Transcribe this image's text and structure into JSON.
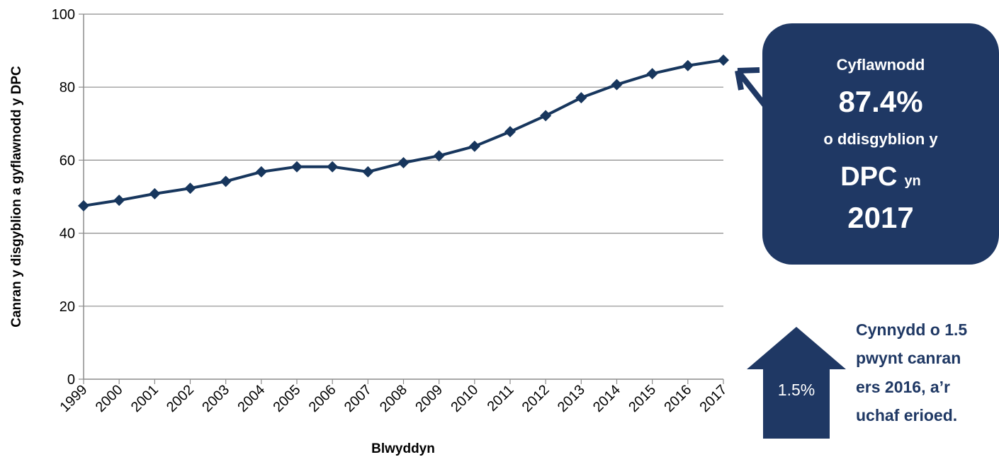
{
  "chart_data": {
    "type": "line",
    "x": [
      "1999",
      "2000",
      "2001",
      "2002",
      "2003",
      "2004",
      "2005",
      "2006",
      "2007",
      "2008",
      "2009",
      "2010",
      "2011",
      "2012",
      "2013",
      "2014",
      "2015",
      "2016",
      "2017"
    ],
    "series": [
      {
        "values": [
          47.5,
          49.0,
          50.8,
          52.3,
          54.2,
          56.8,
          58.2,
          58.2,
          56.8,
          59.3,
          61.2,
          63.8,
          67.8,
          72.2,
          77.1,
          80.7,
          83.7,
          85.9,
          87.4
        ]
      }
    ],
    "xlabel": "Blwyddyn",
    "ylabel": "Canran y disgyblion a gyflawnodd y DPC",
    "ylim": [
      0,
      100
    ],
    "yticks": [
      "0",
      "20",
      "40",
      "60",
      "80",
      "100"
    ],
    "grid": true,
    "series_color": "#17365d"
  },
  "callout": {
    "line1": "Cyflawnodd",
    "line2": "87.4%",
    "line3": "o ddisgyblion y",
    "line4_main": "DPC",
    "line4_small": "yn",
    "line5": "2017",
    "box_color": "#1f3864"
  },
  "increase": {
    "arrow_label": "1.5%",
    "note_lines": [
      "Cynnydd o 1.5",
      "pwynt canran",
      "ers 2016, a’r",
      "uchaf erioed."
    ],
    "note_color": "#1f3864"
  }
}
